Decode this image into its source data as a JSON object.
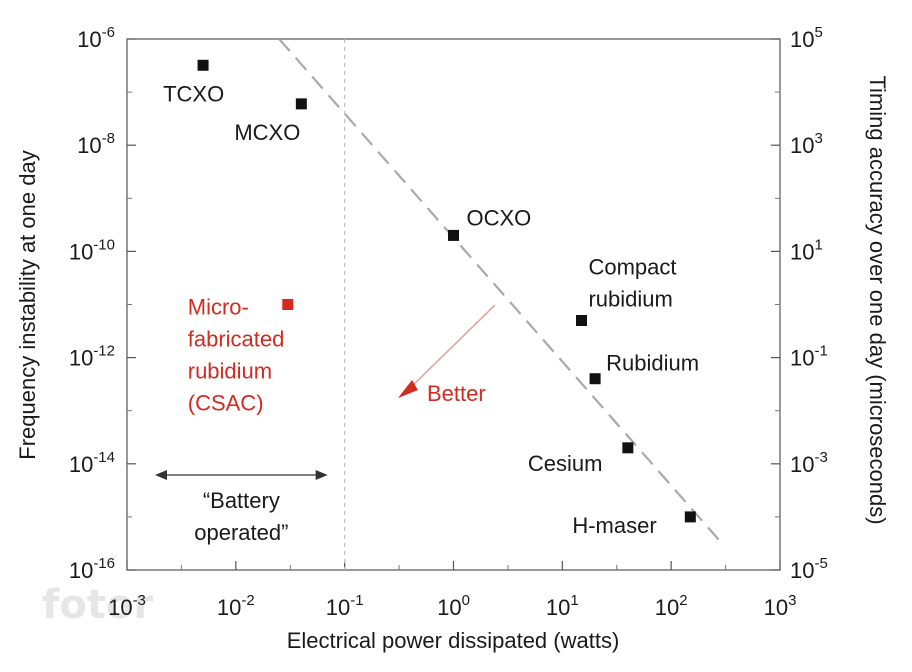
{
  "chart_data": {
    "type": "scatter",
    "xlabel": "Electrical power dissipated (watts)",
    "ylabel": "Frequency instability at one day",
    "y2label": "Timing accuracy over one day (microseconds)",
    "x_scale": "log",
    "y_scale": "log",
    "xlim": [
      0.001,
      1000
    ],
    "ylim": [
      1e-16,
      1e-06
    ],
    "y2lim": [
      1e-05,
      100000
    ],
    "x_ticks": [
      {
        "base": "10",
        "exp": "-3"
      },
      {
        "base": "10",
        "exp": "-2"
      },
      {
        "base": "10",
        "exp": "-1"
      },
      {
        "base": "10",
        "exp": "0"
      },
      {
        "base": "10",
        "exp": "1"
      },
      {
        "base": "10",
        "exp": "2"
      },
      {
        "base": "10",
        "exp": "3"
      }
    ],
    "y_ticks": [
      {
        "base": "10",
        "exp": "-6"
      },
      {
        "base": "10",
        "exp": "-8"
      },
      {
        "base": "10",
        "exp": "-10"
      },
      {
        "base": "10",
        "exp": "-12"
      },
      {
        "base": "10",
        "exp": "-14"
      },
      {
        "base": "10",
        "exp": "-16"
      }
    ],
    "y2_ticks": [
      {
        "base": "10",
        "exp": "5"
      },
      {
        "base": "10",
        "exp": "3"
      },
      {
        "base": "10",
        "exp": "1"
      },
      {
        "base": "10",
        "exp": "-1"
      },
      {
        "base": "10",
        "exp": "-3"
      },
      {
        "base": "10",
        "exp": "-5"
      }
    ],
    "points": [
      {
        "label": [
          "TCXO"
        ],
        "x": 0.005,
        "y": 3.2e-07,
        "color": "#111111"
      },
      {
        "label": [
          "MCXO"
        ],
        "x": 0.04,
        "y": 6e-08,
        "color": "#111111"
      },
      {
        "label": [
          "OCXO"
        ],
        "x": 1.0,
        "y": 2e-10,
        "color": "#111111"
      },
      {
        "label": [
          "Compact",
          "rubidium"
        ],
        "x": 15,
        "y": 5e-12,
        "color": "#111111"
      },
      {
        "label": [
          "Rubidium"
        ],
        "x": 20,
        "y": 4e-13,
        "color": "#111111"
      },
      {
        "label": [
          "Cesium"
        ],
        "x": 40,
        "y": 2e-14,
        "color": "#111111"
      },
      {
        "label": [
          "H-maser"
        ],
        "x": 150,
        "y": 1e-15,
        "color": "#111111"
      },
      {
        "label": [
          "Micro-",
          "fabricated",
          "rubidium",
          "(CSAC)"
        ],
        "x": 0.03,
        "y": 1e-11,
        "color": "#d42a20"
      }
    ],
    "trend_line": {
      "from": [
        0.025,
        1e-06
      ],
      "to": [
        300,
        3e-16
      ]
    },
    "vertical_line_x": 0.1,
    "annotations": {
      "battery_text": [
        "“Battery",
        "operated”"
      ],
      "better_text": "Better"
    },
    "colors": {
      "highlight": "#d42a20",
      "points": "#111111"
    },
    "grid": false
  },
  "watermark": "fotor"
}
